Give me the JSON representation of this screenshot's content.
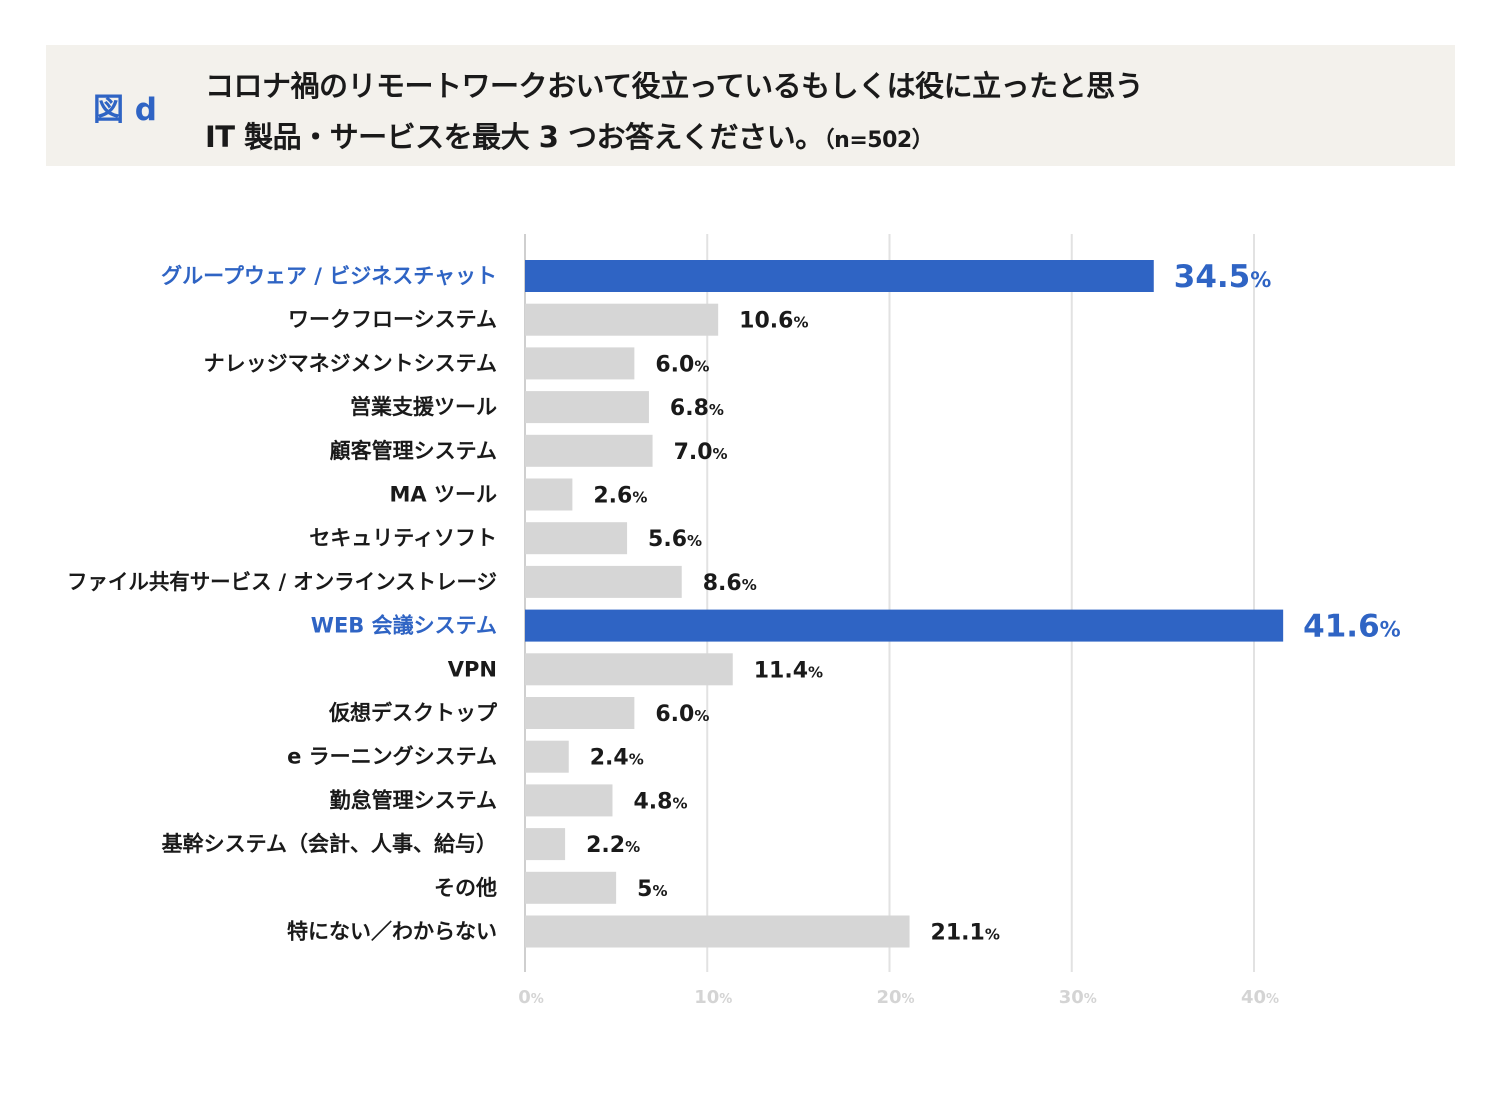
{
  "header": {
    "figure_label": "図 d",
    "title_line1": "コロナ禍のリモートワークおいて役立っているもしくは役に立ったと思う",
    "title_line2": "IT 製品・サービスを最大 3 つお答えください。",
    "sample_size": "（n=502）"
  },
  "chart_data": {
    "type": "bar",
    "orientation": "horizontal",
    "unit": "%",
    "categories": [
      "グループウェア / ビジネスチャット",
      "ワークフローシステム",
      "ナレッジマネジメントシステム",
      "営業支援ツール",
      "顧客管理システム",
      "MA ツール",
      "セキュリティソフト",
      "ファイル共有サービス / オンラインストレージ",
      "WEB 会議システム",
      "VPN",
      "仮想デスクトップ",
      "e ラーニングシステム",
      "勤怠管理システム",
      "基幹システム（会計、人事、給与）",
      "その他",
      "特にない／わからない"
    ],
    "values": [
      34.5,
      10.6,
      6.0,
      6.8,
      7.0,
      2.6,
      5.6,
      8.6,
      41.6,
      11.4,
      6.0,
      2.4,
      4.8,
      2.2,
      5,
      21.1
    ],
    "value_labels": [
      "34.5",
      "10.6",
      "6.0",
      "6.8",
      "7.0",
      "2.6",
      "5.6",
      "8.6",
      "41.6",
      "11.4",
      "6.0",
      "2.4",
      "4.8",
      "2.2",
      "5",
      "21.1"
    ],
    "highlighted": [
      true,
      false,
      false,
      false,
      false,
      false,
      false,
      false,
      true,
      false,
      false,
      false,
      false,
      false,
      false,
      false
    ],
    "xlim": [
      0,
      40
    ],
    "xticks": [
      0,
      10,
      20,
      30,
      40
    ],
    "grid": true,
    "colors": {
      "highlight": "#2f64c4",
      "bar": "#d6d6d6",
      "grid": "#e2e2e2",
      "tick": "#d4d4d4"
    }
  }
}
